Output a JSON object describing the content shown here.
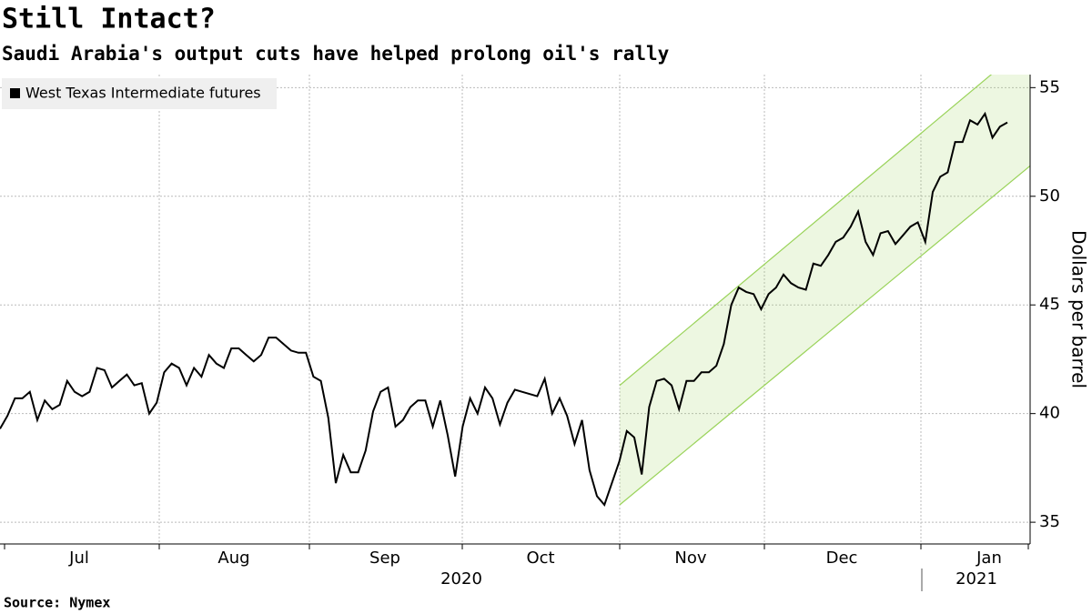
{
  "chart_data": {
    "type": "line",
    "title": "Still Intact?",
    "subtitle": "Saudi Arabia's output cuts have helped prolong oil's rally",
    "source": "Source: Nymex",
    "y_label": "Dollars per barrel",
    "x_labels": [
      "Jul",
      "Aug",
      "Sep",
      "Oct",
      "Nov",
      "Dec",
      "Jan"
    ],
    "year_labels": [
      "2020",
      "2021"
    ],
    "ylim": [
      34,
      55.6
    ],
    "yticks": [
      35,
      40,
      45,
      50,
      55
    ],
    "grid": true,
    "legend": "top-left",
    "series": [
      {
        "name": "West Texas Intermediate futures",
        "color": "#000000",
        "values": [
          39.3,
          39.9,
          40.7,
          40.7,
          41.0,
          39.7,
          40.6,
          40.2,
          40.4,
          41.5,
          41.0,
          40.8,
          41.0,
          42.1,
          42.0,
          41.2,
          41.5,
          41.8,
          41.3,
          41.4,
          40.0,
          40.5,
          41.9,
          42.3,
          42.1,
          41.3,
          42.1,
          41.7,
          42.7,
          42.3,
          42.1,
          43.0,
          43.0,
          42.7,
          42.4,
          42.7,
          43.5,
          43.5,
          43.2,
          42.9,
          42.8,
          42.8,
          41.7,
          41.5,
          39.8,
          36.8,
          38.1,
          37.3,
          37.3,
          38.3,
          40.1,
          41.0,
          41.2,
          39.4,
          39.7,
          40.3,
          40.6,
          40.6,
          39.4,
          40.6,
          39.0,
          37.1,
          39.4,
          40.7,
          40.0,
          41.2,
          40.7,
          39.5,
          40.5,
          41.1,
          41.0,
          40.9,
          40.8,
          41.6,
          40.0,
          40.7,
          39.9,
          38.6,
          39.7,
          37.4,
          36.2,
          35.8,
          36.8,
          37.8,
          39.2,
          38.9,
          37.2,
          40.3,
          41.5,
          41.6,
          41.3,
          40.2,
          41.5,
          41.5,
          41.9,
          41.9,
          42.2,
          43.2,
          45.0,
          45.8,
          45.6,
          45.5,
          44.8,
          45.5,
          45.8,
          46.4,
          46.0,
          45.8,
          45.7,
          46.9,
          46.8,
          47.3,
          47.9,
          48.1,
          48.6,
          49.3,
          47.9,
          47.3,
          48.3,
          48.4,
          47.8,
          48.2,
          48.6,
          48.8,
          47.9,
          50.2,
          50.9,
          51.1,
          52.5,
          52.5,
          53.5,
          53.3,
          53.8,
          52.7,
          53.2,
          53.4
        ]
      }
    ],
    "channel": {
      "upper": [
        41.3,
        57.1
      ],
      "lower": [
        35.8,
        51.4
      ],
      "color": "#9ad35a"
    }
  }
}
